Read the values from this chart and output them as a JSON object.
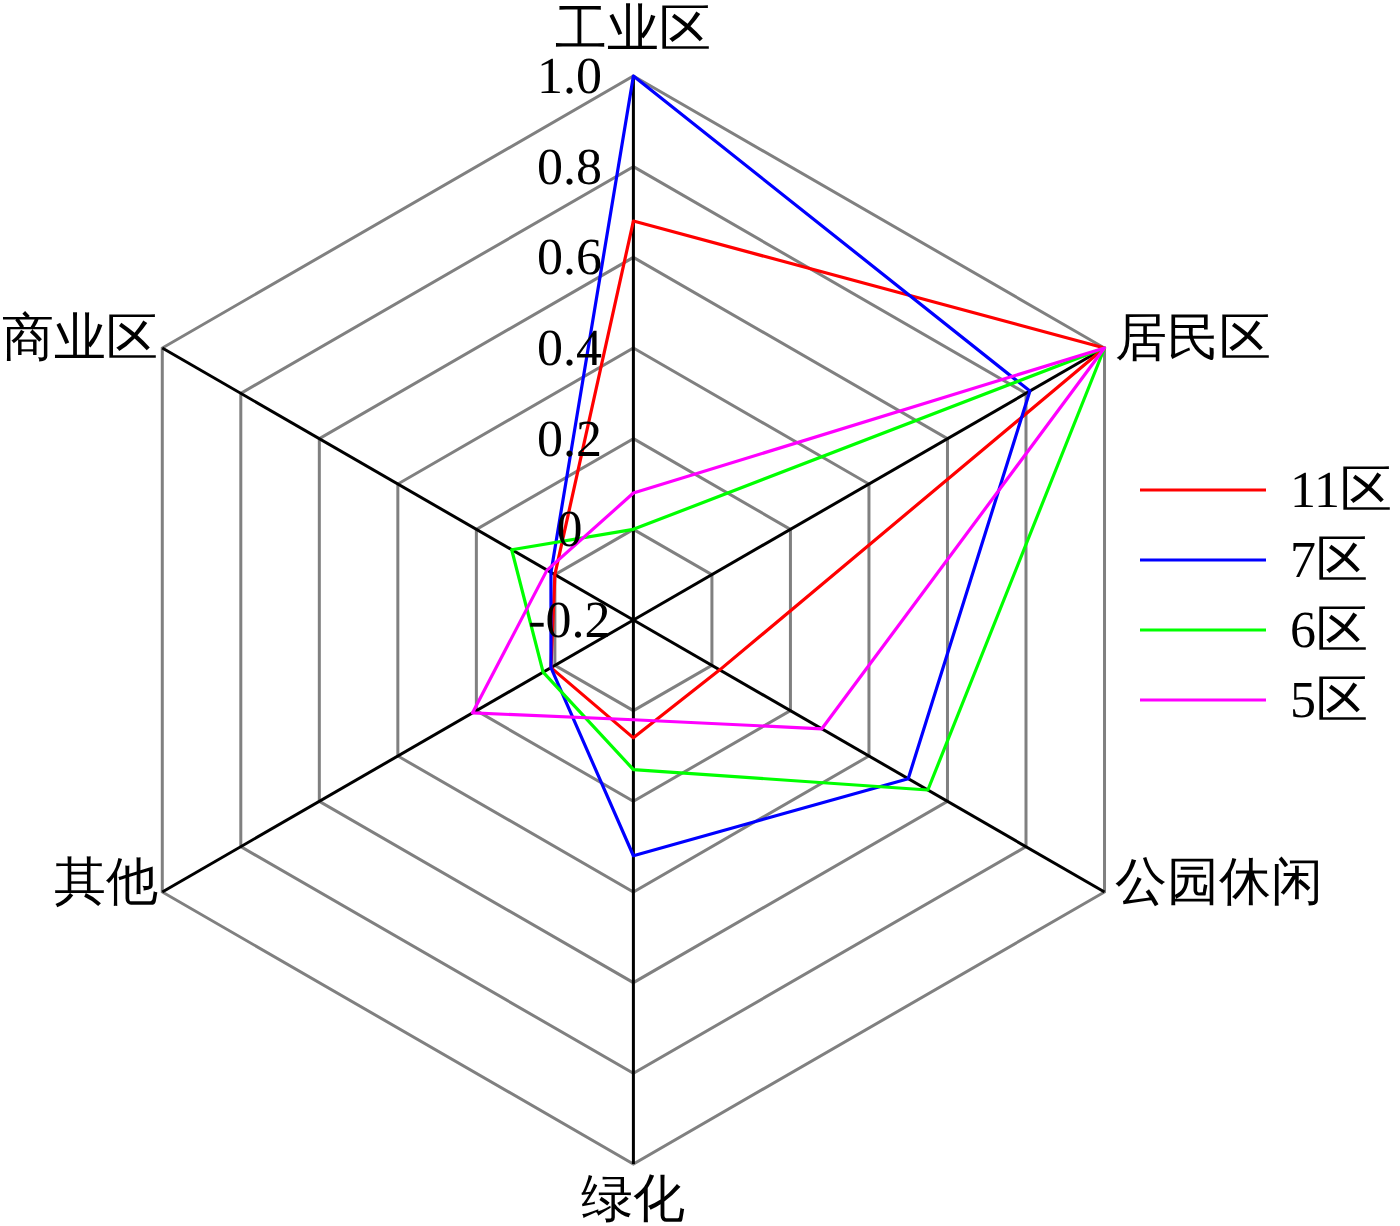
{
  "chart_data": {
    "type": "radar",
    "categories": [
      "工业区",
      "居民区",
      "公园休闲",
      "绿化",
      "其他",
      "商业区"
    ],
    "series": [
      {
        "name": "11区",
        "color": "#ff0000",
        "values": [
          0.68,
          1.0,
          0.02,
          0.06,
          0.01,
          0.0
        ]
      },
      {
        "name": "7区",
        "color": "#0000ff",
        "values": [
          1.0,
          0.81,
          0.5,
          0.32,
          0.01,
          0.01
        ]
      },
      {
        "name": "6区",
        "color": "#00ff00",
        "values": [
          0.0,
          1.0,
          0.55,
          0.13,
          0.03,
          0.11
        ]
      },
      {
        "name": "5区",
        "color": "#ff00ff",
        "values": [
          0.08,
          1.0,
          0.28,
          0.02,
          0.21,
          0.02
        ]
      }
    ],
    "ylim": [
      -0.2,
      1.0
    ],
    "yticks": [
      -0.2,
      0,
      0.2,
      0.4,
      0.6,
      0.8,
      {
        "value": 1,
        "label": "1.0"
      }
    ],
    "grid": true,
    "legend": "right"
  }
}
